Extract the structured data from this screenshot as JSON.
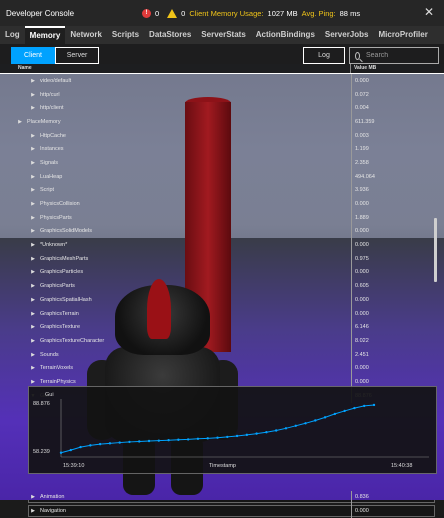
{
  "window": {
    "title": "Developer Console",
    "error_count": "0",
    "warning_count": "0",
    "memory_label": "Client Memory Usage:",
    "memory_value": "1027 MB",
    "ping_label": "Avg. Ping:",
    "ping_value": "88 ms"
  },
  "tabs": [
    "Log",
    "Memory",
    "Network",
    "Scripts",
    "DataStores",
    "ServerStats",
    "ActionBindings",
    "ServerJobs",
    "MicroProfiler"
  ],
  "active_tab": "Memory",
  "toolbar": {
    "client_label": "Client",
    "server_label": "Server",
    "log_label": "Log",
    "search_placeholder": "Search"
  },
  "table": {
    "col_name": "Name",
    "col_value": "Value MB",
    "rows": [
      {
        "name": "video/default",
        "value": "0.000",
        "level": 2
      },
      {
        "name": "http/curl",
        "value": "0.072",
        "level": 2
      },
      {
        "name": "http/client",
        "value": "0.004",
        "level": 2
      },
      {
        "name": "PlaceMemory",
        "value": "611.359",
        "level": 1
      },
      {
        "name": "HttpCache",
        "value": "0.003",
        "level": 2
      },
      {
        "name": "Instances",
        "value": "1.199",
        "level": 2
      },
      {
        "name": "Signals",
        "value": "2.358",
        "level": 2
      },
      {
        "name": "LuaHeap",
        "value": "494.064",
        "level": 2
      },
      {
        "name": "Script",
        "value": "3.936",
        "level": 2
      },
      {
        "name": "PhysicsCollision",
        "value": "0.000",
        "level": 2
      },
      {
        "name": "PhysicsParts",
        "value": "1.889",
        "level": 2
      },
      {
        "name": "GraphicsSolidModels",
        "value": "0.000",
        "level": 2
      },
      {
        "name": "*Unknown*",
        "value": "0.000",
        "level": 2
      },
      {
        "name": "GraphicsMeshParts",
        "value": "0.975",
        "level": 2
      },
      {
        "name": "GraphicsParticles",
        "value": "0.000",
        "level": 2
      },
      {
        "name": "GraphicsParts",
        "value": "0.605",
        "level": 2
      },
      {
        "name": "GraphicsSpatialHash",
        "value": "0.000",
        "level": 2
      },
      {
        "name": "GraphicsTerrain",
        "value": "0.000",
        "level": 2
      },
      {
        "name": "GraphicsTexture",
        "value": "6.146",
        "level": 2
      },
      {
        "name": "GraphicsTextureCharacter",
        "value": "8.022",
        "level": 2
      },
      {
        "name": "Sounds",
        "value": "2.451",
        "level": 2
      },
      {
        "name": "TerrainVoxels",
        "value": "0.000",
        "level": 2
      },
      {
        "name": "TerrainPhysics",
        "value": "0.000",
        "level": 2
      },
      {
        "name": "Gui",
        "value": "88.876",
        "level": 2,
        "expanded": true
      }
    ],
    "rows_after": [
      {
        "name": "Animation",
        "value": "0.836",
        "level": 2
      },
      {
        "name": "Navigation",
        "value": "0.000",
        "level": 2
      }
    ]
  },
  "graph": {
    "title": "Gui",
    "y_max_label": "88.876",
    "y_min_label": "58.239",
    "x_start_label": "15:39:10",
    "x_end_label": "15:40:38",
    "x_axis_label": "Timestamp",
    "points": [
      58.4,
      60.1,
      62.0,
      63.1,
      63.9,
      64.4,
      64.9,
      65.3,
      65.6,
      65.9,
      66.1,
      66.4,
      66.7,
      66.9,
      67.3,
      67.6,
      68.0,
      68.5,
      69.1,
      69.8,
      70.6,
      71.5,
      72.6,
      74.0,
      75.6,
      77.2,
      79.0,
      81.0,
      83.2,
      85.1,
      86.9,
      88.3,
      88.9
    ]
  },
  "colors": {
    "accent": "#00a2ff",
    "warning": "#f0c419",
    "error": "#e03b3b"
  }
}
